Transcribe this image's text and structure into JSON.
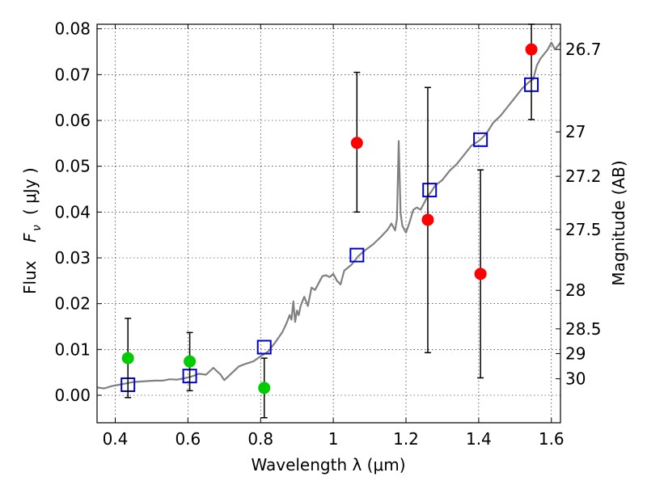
{
  "chart_data": {
    "type": "scatter",
    "xlabel": "Wavelength  λ (μm)",
    "ylabel_text": "Flux",
    "ylabel_math": "F",
    "ylabel_math_sub": "ν",
    "ylabel_units": "( μJy )",
    "y2label": "Magnitude (AB)",
    "xlim": [
      0.35,
      1.625
    ],
    "ylim": [
      -0.006,
      0.081
    ],
    "grid": true,
    "x_ticks": [
      {
        "value": 0.4,
        "label": "0.4"
      },
      {
        "value": 0.6,
        "label": "0.6"
      },
      {
        "value": 0.8,
        "label": "0.8"
      },
      {
        "value": 1.0,
        "label": "1"
      },
      {
        "value": 1.2,
        "label": "1.2"
      },
      {
        "value": 1.4,
        "label": "1.4"
      },
      {
        "value": 1.6,
        "label": "1.6"
      }
    ],
    "y_ticks": [
      {
        "value": 0.0,
        "label": "0.00"
      },
      {
        "value": 0.01,
        "label": "0.01"
      },
      {
        "value": 0.02,
        "label": "0.02"
      },
      {
        "value": 0.03,
        "label": "0.03"
      },
      {
        "value": 0.04,
        "label": "0.04"
      },
      {
        "value": 0.05,
        "label": "0.05"
      },
      {
        "value": 0.06,
        "label": "0.06"
      },
      {
        "value": 0.07,
        "label": "0.07"
      },
      {
        "value": 0.08,
        "label": "0.08"
      }
    ],
    "y2_ticks": [
      {
        "flux": 0.0755,
        "label": "26.7"
      },
      {
        "flux": 0.0575,
        "label": "27"
      },
      {
        "flux": 0.0478,
        "label": "27.2"
      },
      {
        "flux": 0.0362,
        "label": "27.5"
      },
      {
        "flux": 0.0229,
        "label": "28"
      },
      {
        "flux": 0.0145,
        "label": "28.5"
      },
      {
        "flux": 0.0091,
        "label": "29"
      },
      {
        "flux": 0.0036,
        "label": "30"
      }
    ],
    "series": [
      {
        "marker": "line",
        "color": "#808080",
        "points": [
          [
            0.35,
            0.0017
          ],
          [
            0.37,
            0.0015
          ],
          [
            0.39,
            0.002
          ],
          [
            0.41,
            0.0023
          ],
          [
            0.43,
            0.0026
          ],
          [
            0.45,
            0.0029
          ],
          [
            0.47,
            0.003
          ],
          [
            0.49,
            0.0031
          ],
          [
            0.51,
            0.0032
          ],
          [
            0.53,
            0.0032
          ],
          [
            0.55,
            0.0035
          ],
          [
            0.57,
            0.0034
          ],
          [
            0.59,
            0.0037
          ],
          [
            0.61,
            0.0041
          ],
          [
            0.63,
            0.0047
          ],
          [
            0.65,
            0.0045
          ],
          [
            0.67,
            0.006
          ],
          [
            0.69,
            0.0045
          ],
          [
            0.7,
            0.0033
          ],
          [
            0.72,
            0.0048
          ],
          [
            0.74,
            0.0063
          ],
          [
            0.76,
            0.0069
          ],
          [
            0.78,
            0.0074
          ],
          [
            0.8,
            0.0085
          ],
          [
            0.82,
            0.0095
          ],
          [
            0.84,
            0.0115
          ],
          [
            0.86,
            0.0138
          ],
          [
            0.87,
            0.0155
          ],
          [
            0.88,
            0.0175
          ],
          [
            0.885,
            0.0165
          ],
          [
            0.89,
            0.0205
          ],
          [
            0.895,
            0.016
          ],
          [
            0.9,
            0.0185
          ],
          [
            0.905,
            0.0175
          ],
          [
            0.91,
            0.0195
          ],
          [
            0.92,
            0.0215
          ],
          [
            0.93,
            0.0195
          ],
          [
            0.94,
            0.0235
          ],
          [
            0.95,
            0.023
          ],
          [
            0.96,
            0.0245
          ],
          [
            0.97,
            0.026
          ],
          [
            0.98,
            0.0262
          ],
          [
            0.99,
            0.0258
          ],
          [
            1.0,
            0.0265
          ],
          [
            1.01,
            0.025
          ],
          [
            1.02,
            0.0242
          ],
          [
            1.03,
            0.0272
          ],
          [
            1.05,
            0.0285
          ],
          [
            1.07,
            0.0305
          ],
          [
            1.09,
            0.0318
          ],
          [
            1.11,
            0.033
          ],
          [
            1.13,
            0.0345
          ],
          [
            1.15,
            0.0362
          ],
          [
            1.16,
            0.0375
          ],
          [
            1.17,
            0.036
          ],
          [
            1.175,
            0.0385
          ],
          [
            1.18,
            0.0555
          ],
          [
            1.185,
            0.0398
          ],
          [
            1.19,
            0.037
          ],
          [
            1.2,
            0.0355
          ],
          [
            1.21,
            0.0378
          ],
          [
            1.22,
            0.0405
          ],
          [
            1.23,
            0.041
          ],
          [
            1.24,
            0.0405
          ],
          [
            1.25,
            0.042
          ],
          [
            1.26,
            0.0435
          ],
          [
            1.27,
            0.0445
          ],
          [
            1.28,
            0.0458
          ],
          [
            1.3,
            0.047
          ],
          [
            1.32,
            0.049
          ],
          [
            1.34,
            0.0505
          ],
          [
            1.36,
            0.0525
          ],
          [
            1.38,
            0.0545
          ],
          [
            1.4,
            0.0555
          ],
          [
            1.42,
            0.057
          ],
          [
            1.44,
            0.0595
          ],
          [
            1.46,
            0.061
          ],
          [
            1.48,
            0.063
          ],
          [
            1.5,
            0.065
          ],
          [
            1.52,
            0.067
          ],
          [
            1.54,
            0.0685
          ],
          [
            1.55,
            0.069
          ],
          [
            1.56,
            0.072
          ],
          [
            1.57,
            0.0735
          ],
          [
            1.58,
            0.0745
          ],
          [
            1.59,
            0.0755
          ],
          [
            1.6,
            0.077
          ],
          [
            1.61,
            0.0755
          ],
          [
            1.625,
            0.077
          ]
        ]
      },
      {
        "marker": "open-square",
        "color": "#0000cc",
        "points": [
          [
            0.435,
            0.0023
          ],
          [
            0.605,
            0.0042
          ],
          [
            0.81,
            0.0105
          ],
          [
            1.065,
            0.0306
          ],
          [
            1.265,
            0.0448
          ],
          [
            1.405,
            0.0558
          ],
          [
            1.545,
            0.0678
          ]
        ]
      },
      {
        "marker": "filled-circle",
        "color": "#00cc00",
        "points": [
          {
            "x": 0.435,
            "y": 0.0081,
            "ylo": -0.0005,
            "yhi": 0.0168
          },
          {
            "x": 0.605,
            "y": 0.0074,
            "ylo": 0.001,
            "yhi": 0.0137
          },
          {
            "x": 0.81,
            "y": 0.0016,
            "ylo": -0.0049,
            "yhi": 0.0081
          }
        ]
      },
      {
        "marker": "filled-circle",
        "color": "#ff0000",
        "points": [
          {
            "x": 1.065,
            "y": 0.0551,
            "ylo": 0.04,
            "yhi": 0.0705
          },
          {
            "x": 1.26,
            "y": 0.0383,
            "ylo": 0.0093,
            "yhi": 0.0672
          },
          {
            "x": 1.405,
            "y": 0.0265,
            "ylo": 0.0038,
            "yhi": 0.0492
          },
          {
            "x": 1.545,
            "y": 0.0755,
            "ylo": 0.0602,
            "yhi": 0.081
          }
        ]
      }
    ]
  }
}
